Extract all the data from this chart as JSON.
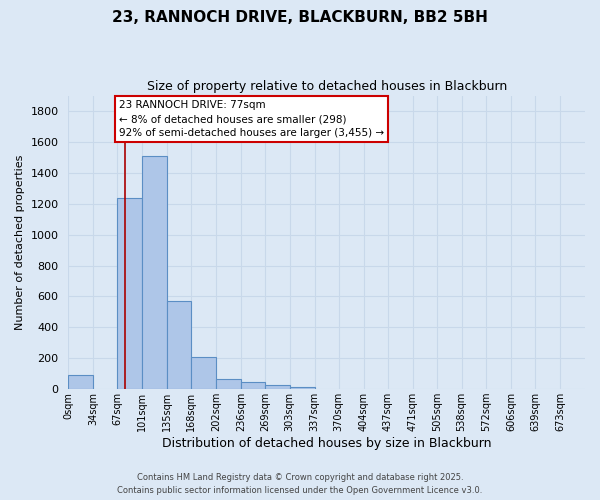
{
  "title": "23, RANNOCH DRIVE, BLACKBURN, BB2 5BH",
  "subtitle": "Size of property relative to detached houses in Blackburn",
  "xlabel": "Distribution of detached houses by size in Blackburn",
  "ylabel": "Number of detached properties",
  "bar_labels": [
    "0sqm",
    "34sqm",
    "67sqm",
    "101sqm",
    "135sqm",
    "168sqm",
    "202sqm",
    "236sqm",
    "269sqm",
    "303sqm",
    "337sqm",
    "370sqm",
    "404sqm",
    "437sqm",
    "471sqm",
    "505sqm",
    "538sqm",
    "572sqm",
    "606sqm",
    "639sqm",
    "673sqm"
  ],
  "bar_values": [
    90,
    0,
    1235,
    1510,
    570,
    210,
    65,
    45,
    25,
    15,
    0,
    0,
    0,
    0,
    0,
    0,
    0,
    0,
    0,
    0,
    0
  ],
  "bar_color": "#aec6e8",
  "bar_edgecolor": "#5b8ec4",
  "property_label": "23 RANNOCH DRIVE: 77sqm",
  "annotation_line1": "← 8% of detached houses are smaller (298)",
  "annotation_line2": "92% of semi-detached houses are larger (3,455) →",
  "vline_x": 77,
  "vline_color": "#aa0000",
  "ylim": [
    0,
    1900
  ],
  "yticks": [
    0,
    200,
    400,
    600,
    800,
    1000,
    1200,
    1400,
    1600,
    1800
  ],
  "bg_color": "#dce8f5",
  "grid_color": "#c8d8ea",
  "footer1": "Contains HM Land Registry data © Crown copyright and database right 2025.",
  "footer2": "Contains public sector information licensed under the Open Government Licence v3.0.",
  "bin_edges": [
    0,
    34,
    67,
    101,
    135,
    168,
    202,
    236,
    269,
    303,
    337,
    370,
    404,
    437,
    471,
    505,
    538,
    572,
    606,
    639,
    673,
    707
  ]
}
